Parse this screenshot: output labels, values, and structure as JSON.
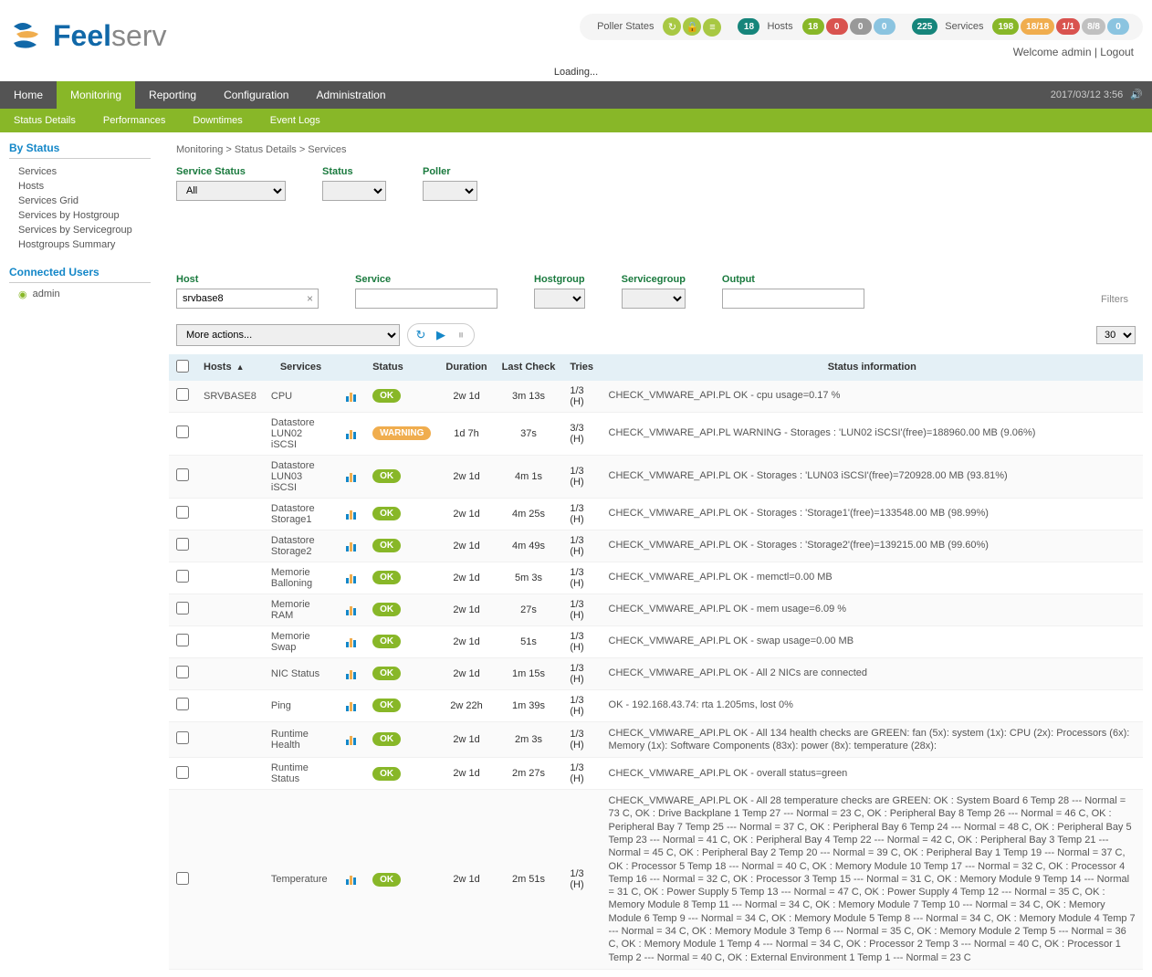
{
  "logo": {
    "text1": "Feel",
    "text2": "serv"
  },
  "topbar": {
    "poller_label": "Poller States",
    "poller_icons": [
      {
        "bg": "#a8c843",
        "glyph": "↻"
      },
      {
        "bg": "#a8c843",
        "glyph": "🔒"
      },
      {
        "bg": "#a8c843",
        "glyph": "≡"
      }
    ],
    "hosts_label": "Hosts",
    "hosts_badges": [
      {
        "bg": "#16857b",
        "text": "18"
      },
      {
        "bg": "#88b728",
        "text": "18"
      },
      {
        "bg": "#d9534f",
        "text": "0"
      },
      {
        "bg": "#999999",
        "text": "0"
      },
      {
        "bg": "#8bc4e0",
        "text": "0"
      }
    ],
    "services_label": "Services",
    "services_badges": [
      {
        "bg": "#16857b",
        "text": "225"
      },
      {
        "bg": "#88b728",
        "text": "198"
      },
      {
        "bg": "#f0ad4e",
        "text": "18/18"
      },
      {
        "bg": "#d9534f",
        "text": "1/1"
      },
      {
        "bg": "#c0c0c0",
        "text": "8/8"
      },
      {
        "bg": "#8bc4e0",
        "text": "0"
      }
    ],
    "welcome": "Welcome admin",
    "logout": "Logout",
    "loading": "Loading..."
  },
  "menu1": {
    "items": [
      "Home",
      "Monitoring",
      "Reporting",
      "Configuration",
      "Administration"
    ],
    "active_index": 1,
    "datetime": "2017/03/12 3:56"
  },
  "menu2": {
    "items": [
      "Status Details",
      "Performances",
      "Downtimes",
      "Event Logs"
    ]
  },
  "sidebar": {
    "by_status_title": "By Status",
    "by_status_items": [
      "Services",
      "Hosts",
      "Services Grid",
      "Services by Hostgroup",
      "Services by Servicegroup",
      "Hostgroups Summary"
    ],
    "connected_title": "Connected Users",
    "connected_user": "admin"
  },
  "breadcrumb": "Monitoring  >  Status Details  >  Services",
  "filters": {
    "service_status_label": "Service Status",
    "service_status_value": "All",
    "status_label": "Status",
    "poller_label": "Poller",
    "host_label": "Host",
    "host_value": "srvbase8",
    "service_label": "Service",
    "hostgroup_label": "Hostgroup",
    "servicegroup_label": "Servicegroup",
    "output_label": "Output",
    "filters_btn": "Filters"
  },
  "actions": {
    "more_actions": "More actions...",
    "page_size": "30"
  },
  "table": {
    "headers": {
      "hosts": "Hosts",
      "services": "Services",
      "status": "Status",
      "duration": "Duration",
      "last_check": "Last Check",
      "tries": "Tries",
      "info": "Status information"
    },
    "status_colors": {
      "OK": "#88b728",
      "WARNING": "#f0ad4e"
    },
    "rows": [
      {
        "host": "SRVBASE8",
        "service": "CPU",
        "graph": true,
        "status": "OK",
        "duration": "2w 1d",
        "last": "3m 13s",
        "tries": "1/3 (H)",
        "info": "CHECK_VMWARE_API.PL OK - cpu usage=0.17 %"
      },
      {
        "host": "",
        "service": "Datastore LUN02 iSCSI",
        "graph": true,
        "status": "WARNING",
        "duration": "1d 7h",
        "last": "37s",
        "tries": "3/3 (H)",
        "info": "CHECK_VMWARE_API.PL WARNING - Storages : 'LUN02 iSCSI'(free)=188960.00 MB (9.06%)"
      },
      {
        "host": "",
        "service": "Datastore LUN03 iSCSI",
        "graph": true,
        "status": "OK",
        "duration": "2w 1d",
        "last": "4m 1s",
        "tries": "1/3 (H)",
        "info": "CHECK_VMWARE_API.PL OK - Storages : 'LUN03 iSCSI'(free)=720928.00 MB (93.81%)"
      },
      {
        "host": "",
        "service": "Datastore Storage1",
        "graph": true,
        "status": "OK",
        "duration": "2w 1d",
        "last": "4m 25s",
        "tries": "1/3 (H)",
        "info": "CHECK_VMWARE_API.PL OK - Storages : 'Storage1'(free)=133548.00 MB (98.99%)"
      },
      {
        "host": "",
        "service": "Datastore Storage2",
        "graph": true,
        "status": "OK",
        "duration": "2w 1d",
        "last": "4m 49s",
        "tries": "1/3 (H)",
        "info": "CHECK_VMWARE_API.PL OK - Storages : 'Storage2'(free)=139215.00 MB (99.60%)"
      },
      {
        "host": "",
        "service": "Memorie Balloning",
        "graph": true,
        "status": "OK",
        "duration": "2w 1d",
        "last": "5m 3s",
        "tries": "1/3 (H)",
        "info": "CHECK_VMWARE_API.PL OK - memctl=0.00 MB"
      },
      {
        "host": "",
        "service": "Memorie RAM",
        "graph": true,
        "status": "OK",
        "duration": "2w 1d",
        "last": "27s",
        "tries": "1/3 (H)",
        "info": "CHECK_VMWARE_API.PL OK - mem usage=6.09 %"
      },
      {
        "host": "",
        "service": "Memorie Swap",
        "graph": true,
        "status": "OK",
        "duration": "2w 1d",
        "last": "51s",
        "tries": "1/3 (H)",
        "info": "CHECK_VMWARE_API.PL OK - swap usage=0.00 MB"
      },
      {
        "host": "",
        "service": "NIC Status",
        "graph": true,
        "status": "OK",
        "duration": "2w 1d",
        "last": "1m 15s",
        "tries": "1/3 (H)",
        "info": "CHECK_VMWARE_API.PL OK - All 2 NICs are connected"
      },
      {
        "host": "",
        "service": "Ping",
        "graph": true,
        "status": "OK",
        "duration": "2w 22h",
        "last": "1m 39s",
        "tries": "1/3 (H)",
        "info": "OK - 192.168.43.74: rta 1.205ms, lost 0%"
      },
      {
        "host": "",
        "service": "Runtime Health",
        "graph": true,
        "status": "OK",
        "duration": "2w 1d",
        "last": "2m 3s",
        "tries": "1/3 (H)",
        "info": "CHECK_VMWARE_API.PL OK - All 134 health checks are GREEN: fan (5x): system (1x): CPU (2x): Processors (6x): Memory (1x): Software Components (83x): power (8x): temperature (28x):"
      },
      {
        "host": "",
        "service": "Runtime Status",
        "graph": false,
        "status": "OK",
        "duration": "2w 1d",
        "last": "2m 27s",
        "tries": "1/3 (H)",
        "info": "CHECK_VMWARE_API.PL OK - overall status=green"
      },
      {
        "host": "",
        "service": "Temperature",
        "graph": true,
        "status": "OK",
        "duration": "2w 1d",
        "last": "2m 51s",
        "tries": "1/3 (H)",
        "info": "CHECK_VMWARE_API.PL OK - All 28 temperature checks are GREEN: OK : System Board 6 Temp 28 --- Normal = 73 C, OK : Drive Backplane 1 Temp 27 --- Normal = 23 C, OK : Peripheral Bay 8 Temp 26 --- Normal = 46 C, OK : Peripheral Bay 7 Temp 25 --- Normal = 37 C, OK : Peripheral Bay 6 Temp 24 --- Normal = 48 C, OK : Peripheral Bay 5 Temp 23 --- Normal = 41 C, OK : Peripheral Bay 4 Temp 22 --- Normal = 42 C, OK : Peripheral Bay 3 Temp 21 --- Normal = 45 C, OK : Peripheral Bay 2 Temp 20 --- Normal = 39 C, OK : Peripheral Bay 1 Temp 19 --- Normal = 37 C, OK : Processor 5 Temp 18 --- Normal = 40 C, OK : Memory Module 10 Temp 17 --- Normal = 32 C, OK : Processor 4 Temp 16 --- Normal = 32 C, OK : Processor 3 Temp 15 --- Normal = 31 C, OK : Memory Module 9 Temp 14 --- Normal = 31 C, OK : Power Supply 5 Temp 13 --- Normal = 47 C, OK : Power Supply 4 Temp 12 --- Normal = 35 C, OK : Memory Module 8 Temp 11 --- Normal = 34 C, OK : Memory Module 7 Temp 10 --- Normal = 34 C, OK : Memory Module 6 Temp 9 --- Normal = 34 C, OK : Memory Module 5 Temp 8 --- Normal = 34 C, OK : Memory Module 4 Temp 7 --- Normal = 34 C, OK : Memory Module 3 Temp 6 --- Normal = 35 C, OK : Memory Module 2 Temp 5 --- Normal = 36 C, OK : Memory Module 1 Temp 4 --- Normal = 34 C, OK : Processor 2 Temp 3 --- Normal = 40 C, OK : Processor 1 Temp 2 --- Normal = 40 C, OK : External Environment 1 Temp 1 --- Normal = 23 C"
      }
    ]
  }
}
